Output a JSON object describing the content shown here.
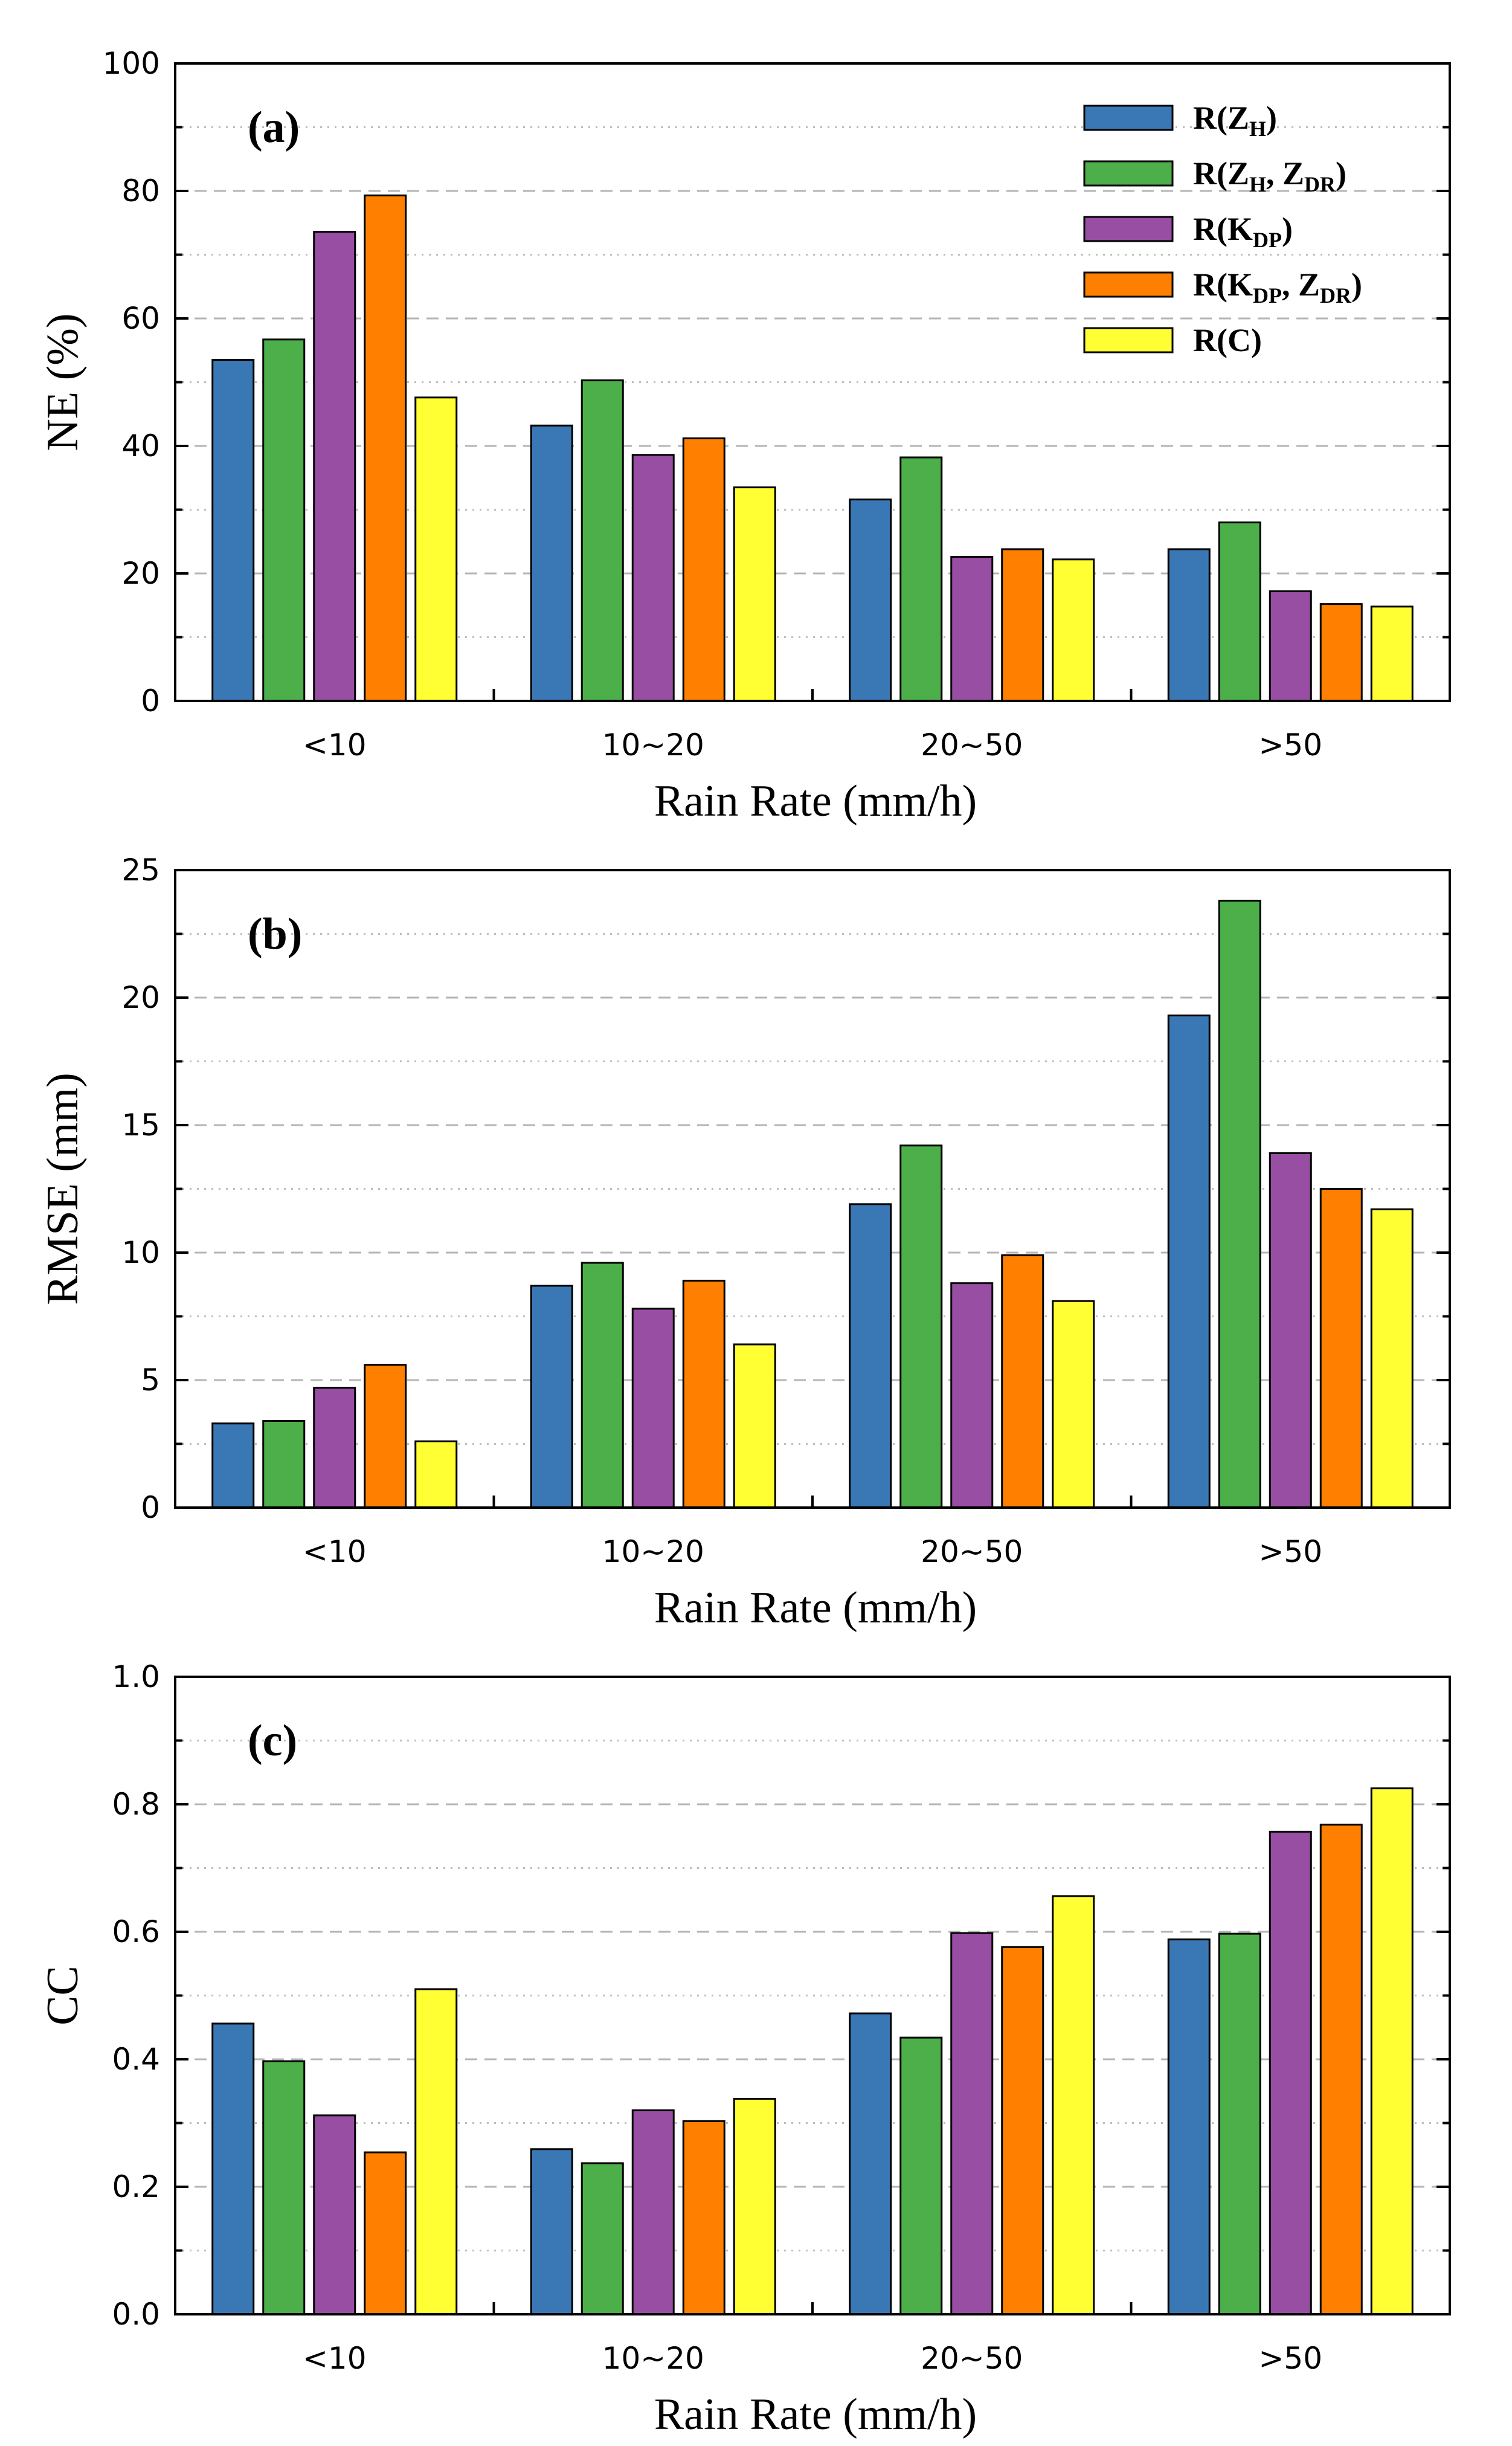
{
  "chart_data": [
    {
      "type": "bar",
      "panel_label": "(a)",
      "title": "",
      "xlabel": "Rain Rate (mm/h)",
      "ylabel": "NE (%)",
      "ylim": [
        0,
        100
      ],
      "yticks": [
        "0",
        "20",
        "40",
        "60",
        "80",
        "100"
      ],
      "grid": "horizontal dashed at labeled ticks, dotted at half ticks",
      "categories": [
        "<10",
        "10~20",
        "20~50",
        ">50"
      ],
      "series": [
        {
          "name": "R(ZH)",
          "color": "#3a78b5",
          "values": [
            53.5,
            43.2,
            31.6,
            23.8
          ]
        },
        {
          "name": "R(ZH, ZDR)",
          "color": "#4daf4a",
          "values": [
            56.7,
            50.3,
            38.2,
            28.0
          ]
        },
        {
          "name": "R(KDP)",
          "color": "#984ea3",
          "values": [
            73.6,
            38.6,
            22.6,
            17.2
          ]
        },
        {
          "name": "R(KDP, ZDR)",
          "color": "#ff7f00",
          "values": [
            79.3,
            41.2,
            23.8,
            15.2
          ]
        },
        {
          "name": "R(C)",
          "color": "#ffff33",
          "values": [
            47.6,
            33.5,
            22.2,
            14.8
          ]
        }
      ],
      "legend": "top-right"
    },
    {
      "type": "bar",
      "panel_label": "(b)",
      "title": "",
      "xlabel": "Rain Rate (mm/h)",
      "ylabel": "RMSE (mm)",
      "ylim": [
        0,
        25
      ],
      "yticks": [
        "0",
        "5",
        "10",
        "15",
        "20",
        "25"
      ],
      "grid": "horizontal dashed at labeled ticks, dotted at half ticks",
      "categories": [
        "<10",
        "10~20",
        "20~50",
        ">50"
      ],
      "series": [
        {
          "name": "R(ZH)",
          "color": "#3a78b5",
          "values": [
            3.3,
            8.7,
            11.9,
            19.3
          ]
        },
        {
          "name": "R(ZH, ZDR)",
          "color": "#4daf4a",
          "values": [
            3.4,
            9.6,
            14.2,
            23.8
          ]
        },
        {
          "name": "R(KDP)",
          "color": "#984ea3",
          "values": [
            4.7,
            7.8,
            8.8,
            13.9
          ]
        },
        {
          "name": "R(KDP, ZDR)",
          "color": "#ff7f00",
          "values": [
            5.6,
            8.9,
            9.9,
            12.5
          ]
        },
        {
          "name": "R(C)",
          "color": "#ffff33",
          "values": [
            2.6,
            6.4,
            8.1,
            11.7
          ]
        }
      ]
    },
    {
      "type": "bar",
      "panel_label": "(c)",
      "title": "",
      "xlabel": "Rain Rate (mm/h)",
      "ylabel": "CC",
      "ylim": [
        0,
        1
      ],
      "yticks": [
        "0.0",
        "0.2",
        "0.4",
        "0.6",
        "0.8",
        "1.0"
      ],
      "grid": "horizontal dashed at labeled ticks, dotted at half ticks",
      "categories": [
        "<10",
        "10~20",
        "20~50",
        ">50"
      ],
      "series": [
        {
          "name": "R(ZH)",
          "color": "#3a78b5",
          "values": [
            0.456,
            0.259,
            0.472,
            0.588
          ]
        },
        {
          "name": "R(ZH, ZDR)",
          "color": "#4daf4a",
          "values": [
            0.397,
            0.237,
            0.434,
            0.597
          ]
        },
        {
          "name": "R(KDP)",
          "color": "#984ea3",
          "values": [
            0.312,
            0.32,
            0.598,
            0.757
          ]
        },
        {
          "name": "R(KDP, ZDR)",
          "color": "#ff7f00",
          "values": [
            0.254,
            0.303,
            0.576,
            0.768
          ]
        },
        {
          "name": "R(C)",
          "color": "#ffff33",
          "values": [
            0.51,
            0.338,
            0.656,
            0.825
          ]
        }
      ]
    }
  ],
  "legend": {
    "items": [
      {
        "main": "R(Z",
        "sub": "H",
        "sub2": "",
        "close": ")",
        "color": "#3a78b5"
      },
      {
        "main": "R(Z",
        "sub": "H",
        "sep": ", Z",
        "sub2": "DR",
        "close": ")",
        "color": "#4daf4a"
      },
      {
        "main": "R(K",
        "sub": "DP",
        "sub2": "",
        "close": ")",
        "color": "#984ea3"
      },
      {
        "main": "R(K",
        "sub": "DP",
        "sep": ", Z",
        "sub2": "DR",
        "close": ")",
        "color": "#ff7f00"
      },
      {
        "main": "R(C)",
        "sub": "",
        "sub2": "",
        "close": "",
        "color": "#ffff33"
      }
    ]
  }
}
